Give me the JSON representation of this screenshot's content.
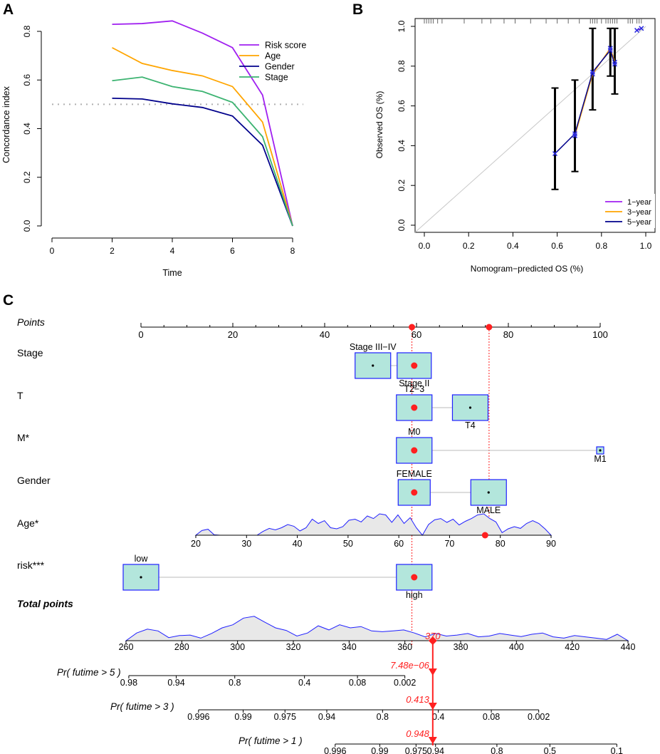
{
  "panels": {
    "a": "A",
    "b": "B",
    "c": "C"
  },
  "chart_data": [
    {
      "type": "line",
      "panel": "A",
      "title": "",
      "xlabel": "Time",
      "ylabel": "Concordance index",
      "xlim": [
        0,
        8
      ],
      "ylim": [
        0,
        0.8
      ],
      "xticks": [
        0,
        2,
        4,
        6,
        8
      ],
      "yticks": [
        0.0,
        0.2,
        0.4,
        0.6,
        0.8
      ],
      "xtick_labels": [
        "0",
        "2",
        "4",
        "6",
        "8"
      ],
      "ytick_labels": [
        "0.0",
        "0.2",
        "0.4",
        "0.6",
        "0.8"
      ],
      "x": [
        2,
        3,
        4,
        5,
        6,
        7,
        8
      ],
      "reference_line": 0.5,
      "legend_position": "top-right",
      "series": [
        {
          "name": "Risk score",
          "color": "#A020F0",
          "values": [
            0.829,
            0.832,
            0.843,
            0.793,
            0.733,
            0.538,
            0.0
          ]
        },
        {
          "name": "Age",
          "color": "#FFA500",
          "values": [
            0.733,
            0.668,
            0.639,
            0.617,
            0.573,
            0.427,
            0.0
          ]
        },
        {
          "name": "Gender",
          "color": "#00008B",
          "values": [
            0.525,
            0.522,
            0.502,
            0.487,
            0.452,
            0.332,
            0.0
          ]
        },
        {
          "name": "Stage",
          "color": "#3CB371",
          "values": [
            0.597,
            0.612,
            0.573,
            0.553,
            0.508,
            0.367,
            0.0
          ]
        }
      ]
    },
    {
      "type": "line",
      "panel": "B",
      "title": "",
      "xlabel": "Nomogram−predicted OS (%)",
      "ylabel": "Observed OS (%)",
      "xlim": [
        0,
        1
      ],
      "ylim": [
        0,
        1
      ],
      "xticks": [
        0.0,
        0.2,
        0.4,
        0.6,
        0.8,
        1.0
      ],
      "yticks": [
        0.0,
        0.2,
        0.4,
        0.6,
        0.8,
        1.0
      ],
      "xtick_labels": [
        "0.0",
        "0.2",
        "0.4",
        "0.6",
        "0.8",
        "1.0"
      ],
      "ytick_labels": [
        "0.0",
        "0.2",
        "0.4",
        "0.6",
        "0.8",
        "1.0"
      ],
      "diagonal": true,
      "legend_position": "bottom-right",
      "series": [
        {
          "name": "1−year",
          "color": "#A020F0",
          "x": [
            0.96,
            0.98
          ],
          "y": [
            0.98,
            0.99
          ]
        },
        {
          "name": "3−year",
          "color": "#FFA500",
          "x": [
            0.68,
            0.76,
            0.84,
            0.86
          ],
          "y": [
            0.45,
            0.76,
            0.89,
            0.82
          ]
        },
        {
          "name": "5−year",
          "color": "#00008B",
          "x": [
            0.59,
            0.68,
            0.76,
            0.84,
            0.86
          ],
          "y": [
            0.36,
            0.46,
            0.77,
            0.88,
            0.81
          ]
        }
      ],
      "error_bars": [
        {
          "x": 0.59,
          "y": 0.36,
          "lo": 0.18,
          "hi": 0.69
        },
        {
          "x": 0.68,
          "y": 0.45,
          "lo": 0.27,
          "hi": 0.73
        },
        {
          "x": 0.76,
          "y": 0.77,
          "lo": 0.58,
          "hi": 0.99
        },
        {
          "x": 0.84,
          "y": 0.89,
          "lo": 0.75,
          "hi": 0.99
        },
        {
          "x": 0.86,
          "y": 0.82,
          "lo": 0.66,
          "hi": 0.99
        }
      ],
      "rug_x": [
        0.0,
        0.01,
        0.02,
        0.03,
        0.04,
        0.06,
        0.08,
        0.18,
        0.26,
        0.3,
        0.36,
        0.41,
        0.48,
        0.55,
        0.6,
        0.65,
        0.7,
        0.75,
        0.76,
        0.77,
        0.78,
        0.8,
        0.82,
        0.83,
        0.84,
        0.85,
        0.86,
        0.87,
        0.92,
        0.93,
        0.94,
        0.96,
        0.97,
        0.98
      ]
    },
    {
      "type": "nomogram",
      "panel": "C",
      "points_row": {
        "label": "Points",
        "min": 0,
        "max": 100,
        "ticks": [
          0,
          20,
          40,
          60,
          80,
          100
        ],
        "markers": [
          59,
          75.8
        ]
      },
      "variables": [
        {
          "label": "Stage",
          "levels": [
            {
              "name": "Stage III−IV",
              "points": 50.5,
              "box_w": 50,
              "label_pos": "above",
              "selected": false
            },
            {
              "name": "Stage II",
              "points": 59.5,
              "box_w": 48,
              "label_pos": "below",
              "selected": true
            }
          ]
        },
        {
          "label": "T",
          "levels": [
            {
              "name": "T2−3",
              "points": 59.5,
              "box_w": 50,
              "label_pos": "above",
              "selected": true
            },
            {
              "name": "T4",
              "points": 71.7,
              "box_w": 50,
              "label_pos": "below",
              "selected": false
            }
          ]
        },
        {
          "label": "M*",
          "levels": [
            {
              "name": "M0",
              "points": 59.5,
              "box_w": 50,
              "label_pos": "above",
              "selected": true
            },
            {
              "name": "M1",
              "points": 100,
              "box_w": 10,
              "label_pos": "below",
              "selected": false
            }
          ]
        },
        {
          "label": "Gender",
          "levels": [
            {
              "name": "FEMALE",
              "points": 59.5,
              "box_w": 45,
              "label_pos": "above",
              "selected": true
            },
            {
              "name": "MALE",
              "points": 75.7,
              "box_w": 50,
              "label_pos": "below",
              "selected": false
            }
          ]
        },
        {
          "label": "risk***",
          "levels": [
            {
              "name": "low",
              "points": 0,
              "box_w": 50,
              "label_pos": "above",
              "selected": false
            },
            {
              "name": "high",
              "points": 59.5,
              "box_w": 50,
              "label_pos": "below",
              "selected": true
            }
          ]
        }
      ],
      "age": {
        "label": "Age*",
        "min": 20,
        "max": 90,
        "ticks": [
          20,
          30,
          40,
          50,
          60,
          70,
          80,
          90
        ],
        "marker_value": 77,
        "density": [
          0.0,
          0.22,
          0.28,
          0.02,
          0.0,
          0.0,
          0.0,
          0.0,
          0.0,
          0.0,
          0.0,
          0.18,
          0.32,
          0.25,
          0.35,
          0.5,
          0.42,
          0.2,
          0.35,
          0.75,
          0.55,
          0.68,
          0.35,
          0.3,
          0.4,
          0.7,
          0.75,
          0.62,
          0.9,
          0.78,
          1.0,
          0.95,
          0.6,
          0.95,
          0.55,
          0.82,
          0.35,
          0.0,
          0.5,
          0.72,
          0.78,
          0.6,
          0.75,
          0.48,
          0.65,
          0.78,
          0.95,
          1.0,
          0.78,
          0.62,
          0.12,
          0.3,
          0.4,
          0.32,
          0.55,
          0.68,
          0.55,
          0.3,
          0.0
        ]
      },
      "total_points": {
        "label": "Total points",
        "min": 260,
        "max": 440,
        "ticks": [
          260,
          280,
          300,
          320,
          340,
          360,
          380,
          400,
          420,
          440
        ],
        "marker": "370",
        "marker_value": 370,
        "density": [
          0.0,
          0.3,
          0.45,
          0.38,
          0.12,
          0.2,
          0.22,
          0.1,
          0.28,
          0.5,
          0.62,
          0.88,
          0.95,
          0.72,
          0.5,
          0.4,
          0.18,
          0.3,
          0.58,
          0.42,
          0.62,
          0.5,
          0.55,
          0.38,
          0.35,
          0.38,
          0.42,
          0.3,
          0.15,
          0.28,
          0.18,
          0.22,
          0.28,
          0.15,
          0.18,
          0.28,
          0.22,
          0.16,
          0.25,
          0.3,
          0.15,
          0.1,
          0.2,
          0.15,
          0.1,
          0.05,
          0.25,
          0.0
        ]
      },
      "probabilities": [
        {
          "label": "Pr( futime > 5 )",
          "value": "7.48e−06",
          "ticks": [
            {
              "t": "0.98",
              "x": 261
            },
            {
              "t": "0.94",
              "x": 278
            },
            {
              "t": "0.8",
              "x": 299
            },
            {
              "t": "0.4",
              "x": 324
            },
            {
              "t": "0.08",
              "x": 343
            },
            {
              "t": "0.002",
              "x": 360
            }
          ]
        },
        {
          "label": "Pr( futime > 3 )",
          "value": "0.413",
          "ticks": [
            {
              "t": "0.996",
              "x": 286
            },
            {
              "t": "0.99",
              "x": 302
            },
            {
              "t": "0.975",
              "x": 317
            },
            {
              "t": "0.94",
              "x": 332
            },
            {
              "t": "0.8",
              "x": 352
            },
            {
              "t": "0.4",
              "x": 372
            },
            {
              "t": "0.08",
              "x": 391
            },
            {
              "t": "0.002",
              "x": 408
            }
          ]
        },
        {
          "label": "Pr( futime > 1 )",
          "value": "0.948",
          "ticks": [
            {
              "t": "0.996",
              "x": 335
            },
            {
              "t": "0.99",
              "x": 351
            },
            {
              "t": "0.975",
              "x": 364
            },
            {
              "t": "0.94",
              "x": 371
            },
            {
              "t": "0.8",
              "x": 393
            },
            {
              "t": "0.5",
              "x": 412
            },
            {
              "t": "0.1",
              "x": 436
            }
          ]
        }
      ]
    }
  ]
}
